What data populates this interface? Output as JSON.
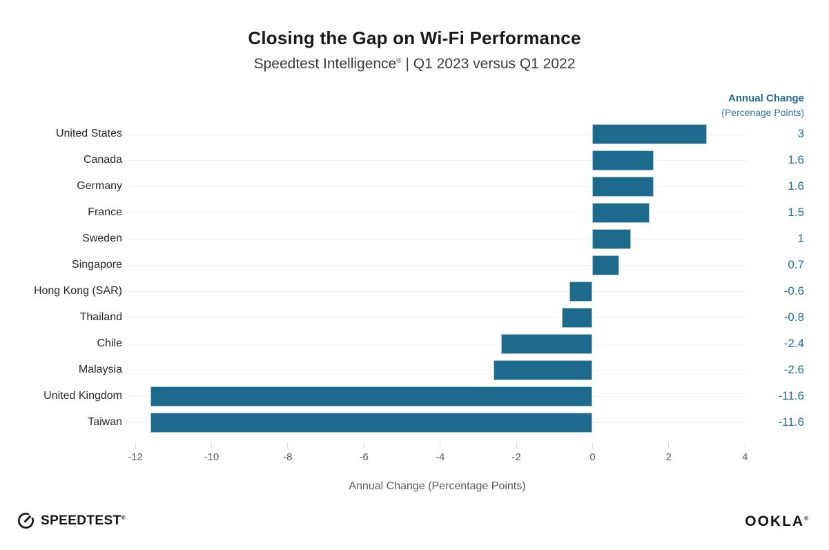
{
  "header": {
    "title": "Closing the Gap on Wi-Fi Performance",
    "subtitle_brand": "Speedtest Intelligence",
    "subtitle_reg": "®",
    "subtitle_rest": " | Q1 2023 versus Q1 2022"
  },
  "value_column": {
    "title": "Annual Change",
    "subtitle": "(Percenage Points)"
  },
  "chart_data": {
    "type": "bar",
    "orientation": "horizontal",
    "title": "Closing the Gap on Wi-Fi Performance",
    "subtitle": "Speedtest Intelligence® | Q1 2023 versus Q1 2022",
    "xlabel": "Annual Change (Percentage Points)",
    "categories": [
      "United States",
      "Canada",
      "Germany",
      "France",
      "Sweden",
      "Singapore",
      "Hong Kong (SAR)",
      "Thailand",
      "Chile",
      "Malaysia",
      "United Kingdom",
      "Taiwan"
    ],
    "values": [
      3,
      1.6,
      1.6,
      1.5,
      1,
      0.7,
      -0.6,
      -0.8,
      -2.4,
      -2.6,
      -11.6,
      -11.6
    ],
    "value_labels": [
      "3",
      "1.6",
      "1.6",
      "1.5",
      "1",
      "0.7",
      "-0.6",
      "-0.8",
      "-2.4",
      "-2.6",
      "-11.6",
      "-11.6"
    ],
    "x_ticks": [
      -12,
      -10,
      -8,
      -6,
      -4,
      -2,
      0,
      2,
      4
    ],
    "xlim": [
      -12.2,
      4.05
    ],
    "grid": "horizontal-row-centers",
    "legend": "none",
    "colors": {
      "bar": "#1e6a8c",
      "bar_edge": "#a3c6d4",
      "value_text": "#1f6d94",
      "gridline": "#f0f0f0",
      "tick": "#d9d9e0",
      "tick_label": "#595959",
      "axis_label": "#595959",
      "category_label": "#262626"
    }
  },
  "footer": {
    "speedtest_label": "SPEEDTEST",
    "speedtest_mark": "®",
    "ookla_label": "OOKLA",
    "ookla_mark": "®"
  }
}
